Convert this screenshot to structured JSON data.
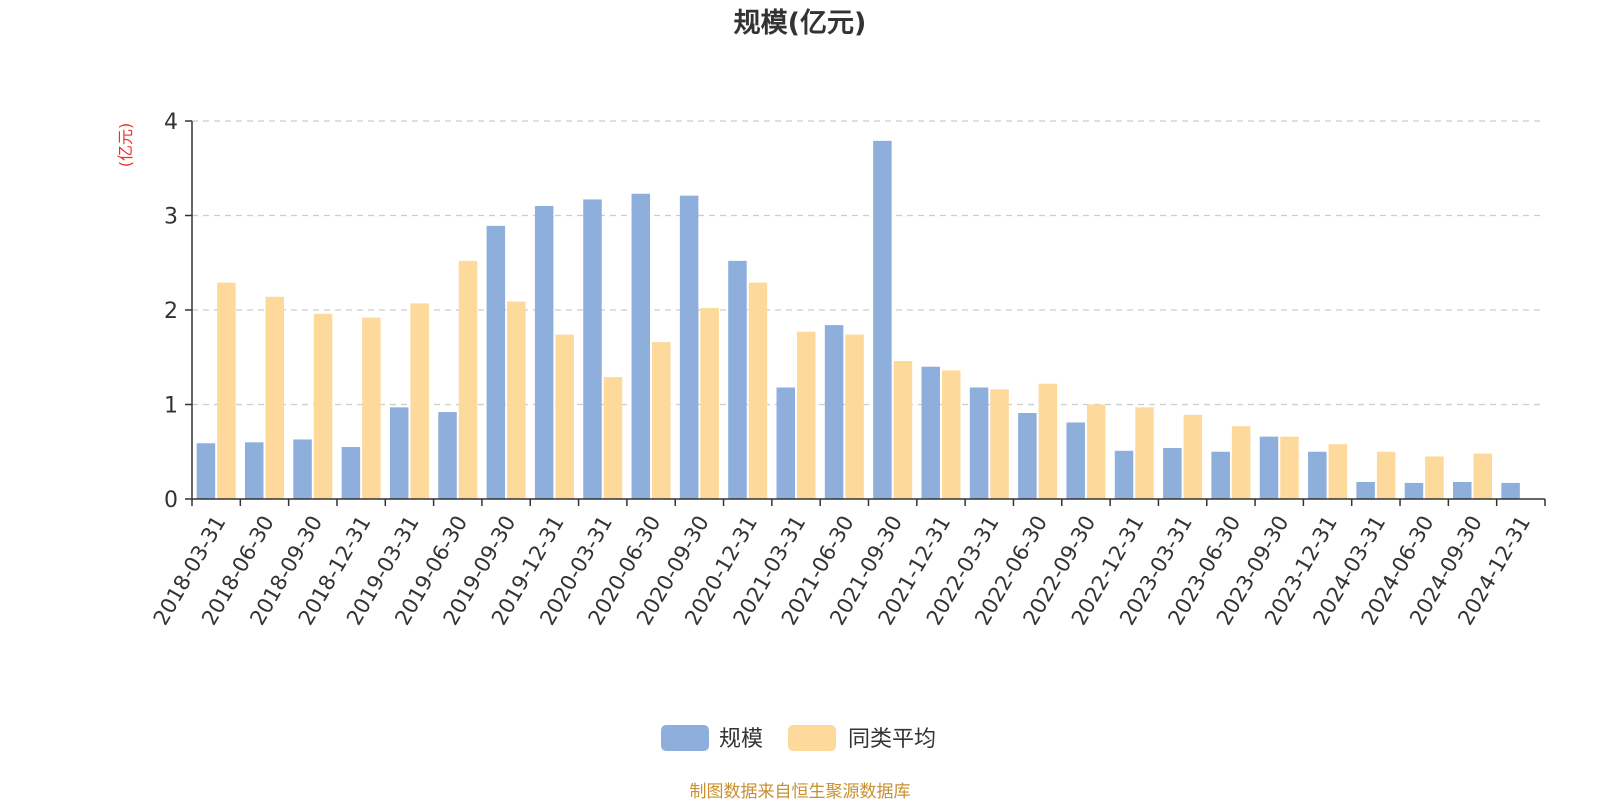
{
  "chart_data": {
    "type": "bar",
    "title": "规模(亿元)",
    "ylabel": "(亿元)",
    "xlabel": "",
    "ylim": [
      0,
      4
    ],
    "yticks": [
      0,
      1,
      2,
      3,
      4
    ],
    "grid": true,
    "legend_position": "bottom",
    "categories": [
      "2018-03-31",
      "2018-06-30",
      "2018-09-30",
      "2018-12-31",
      "2019-03-31",
      "2019-06-30",
      "2019-09-30",
      "2019-12-31",
      "2020-03-31",
      "2020-06-30",
      "2020-09-30",
      "2020-12-31",
      "2021-03-31",
      "2021-06-30",
      "2021-09-30",
      "2021-12-31",
      "2022-03-31",
      "2022-06-30",
      "2022-09-30",
      "2022-12-31",
      "2023-03-31",
      "2023-06-30",
      "2023-09-30",
      "2023-12-31",
      "2024-03-31",
      "2024-06-30",
      "2024-09-30",
      "2024-12-31"
    ],
    "series": [
      {
        "name": "规模",
        "color": "#8eaedb",
        "values": [
          0.59,
          0.6,
          0.63,
          0.55,
          0.97,
          0.92,
          2.89,
          3.1,
          3.17,
          3.23,
          3.21,
          2.52,
          1.18,
          1.84,
          3.79,
          1.4,
          1.18,
          0.91,
          0.81,
          0.51,
          0.54,
          0.5,
          0.66,
          0.5,
          0.18,
          0.17,
          0.18,
          0.17
        ]
      },
      {
        "name": "同类平均",
        "color": "#fdd99b",
        "values": [
          2.29,
          2.14,
          1.96,
          1.92,
          2.07,
          2.52,
          2.09,
          1.74,
          1.29,
          1.66,
          2.02,
          2.29,
          1.77,
          1.74,
          1.46,
          1.36,
          1.16,
          1.22,
          1.0,
          0.97,
          0.89,
          0.77,
          0.66,
          0.58,
          0.5,
          0.45,
          0.48,
          null
        ]
      }
    ]
  },
  "source": "制图数据来自恒生聚源数据库",
  "colors": {
    "unit": "#e8312f",
    "source": "#c8902f",
    "axis": "#333333",
    "grid": "#cccccc"
  }
}
